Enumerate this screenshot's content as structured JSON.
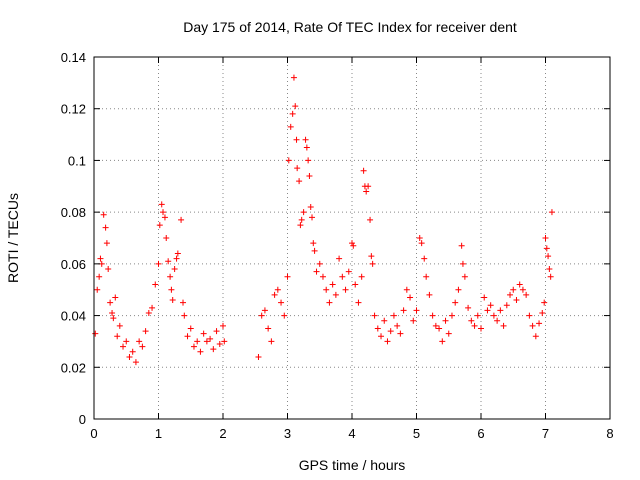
{
  "chart_data": {
    "type": "scatter",
    "title": "Day 175 of 2014, Rate Of TEC Index for receiver dent",
    "xlabel": "GPS time / hours",
    "ylabel": "ROTI / TECUs",
    "xlim": [
      0,
      8
    ],
    "ylim": [
      0,
      0.14
    ],
    "xticks": [
      "0",
      "1",
      "2",
      "3",
      "4",
      "5",
      "6",
      "7",
      "8"
    ],
    "yticks": [
      "0",
      "0.02",
      "0.04",
      "0.06",
      "0.08",
      "0.1",
      "0.12",
      "0.14"
    ],
    "grid": true,
    "marker": "+",
    "color": "#ff0000",
    "series": [
      {
        "name": "ROTI",
        "points": [
          [
            0.02,
            0.033
          ],
          [
            0.05,
            0.05
          ],
          [
            0.08,
            0.055
          ],
          [
            0.1,
            0.062
          ],
          [
            0.12,
            0.06
          ],
          [
            0.15,
            0.079
          ],
          [
            0.18,
            0.074
          ],
          [
            0.2,
            0.068
          ],
          [
            0.22,
            0.058
          ],
          [
            0.25,
            0.045
          ],
          [
            0.28,
            0.041
          ],
          [
            0.3,
            0.039
          ],
          [
            0.33,
            0.047
          ],
          [
            0.36,
            0.032
          ],
          [
            0.4,
            0.036
          ],
          [
            0.45,
            0.028
          ],
          [
            0.5,
            0.03
          ],
          [
            0.55,
            0.024
          ],
          [
            0.6,
            0.026
          ],
          [
            0.65,
            0.022
          ],
          [
            0.7,
            0.03
          ],
          [
            0.75,
            0.028
          ],
          [
            0.8,
            0.034
          ],
          [
            0.85,
            0.041
          ],
          [
            0.9,
            0.043
          ],
          [
            0.95,
            0.052
          ],
          [
            1.0,
            0.06
          ],
          [
            1.02,
            0.075
          ],
          [
            1.05,
            0.083
          ],
          [
            1.07,
            0.08
          ],
          [
            1.1,
            0.078
          ],
          [
            1.12,
            0.07
          ],
          [
            1.15,
            0.061
          ],
          [
            1.18,
            0.055
          ],
          [
            1.2,
            0.05
          ],
          [
            1.22,
            0.046
          ],
          [
            1.25,
            0.058
          ],
          [
            1.28,
            0.062
          ],
          [
            1.3,
            0.064
          ],
          [
            1.35,
            0.077
          ],
          [
            1.38,
            0.045
          ],
          [
            1.4,
            0.04
          ],
          [
            1.45,
            0.032
          ],
          [
            1.5,
            0.035
          ],
          [
            1.55,
            0.028
          ],
          [
            1.6,
            0.03
          ],
          [
            1.65,
            0.026
          ],
          [
            1.7,
            0.033
          ],
          [
            1.75,
            0.03
          ],
          [
            1.8,
            0.031
          ],
          [
            1.85,
            0.027
          ],
          [
            1.9,
            0.034
          ],
          [
            1.95,
            0.029
          ],
          [
            2.0,
            0.036
          ],
          [
            2.02,
            0.03
          ],
          [
            2.55,
            0.024
          ],
          [
            2.6,
            0.04
          ],
          [
            2.65,
            0.042
          ],
          [
            2.7,
            0.035
          ],
          [
            2.75,
            0.03
          ],
          [
            2.8,
            0.048
          ],
          [
            2.85,
            0.05
          ],
          [
            2.9,
            0.045
          ],
          [
            2.95,
            0.04
          ],
          [
            3.0,
            0.055
          ],
          [
            3.02,
            0.1
          ],
          [
            3.05,
            0.113
          ],
          [
            3.08,
            0.118
          ],
          [
            3.1,
            0.132
          ],
          [
            3.12,
            0.121
          ],
          [
            3.14,
            0.108
          ],
          [
            3.15,
            0.097
          ],
          [
            3.18,
            0.092
          ],
          [
            3.2,
            0.075
          ],
          [
            3.22,
            0.077
          ],
          [
            3.25,
            0.08
          ],
          [
            3.28,
            0.108
          ],
          [
            3.3,
            0.105
          ],
          [
            3.32,
            0.1
          ],
          [
            3.34,
            0.094
          ],
          [
            3.36,
            0.082
          ],
          [
            3.38,
            0.078
          ],
          [
            3.4,
            0.068
          ],
          [
            3.42,
            0.065
          ],
          [
            3.45,
            0.057
          ],
          [
            3.5,
            0.06
          ],
          [
            3.55,
            0.055
          ],
          [
            3.6,
            0.05
          ],
          [
            3.65,
            0.045
          ],
          [
            3.7,
            0.052
          ],
          [
            3.75,
            0.048
          ],
          [
            3.8,
            0.062
          ],
          [
            3.85,
            0.055
          ],
          [
            3.9,
            0.05
          ],
          [
            3.95,
            0.057
          ],
          [
            4.0,
            0.068
          ],
          [
            4.02,
            0.067
          ],
          [
            4.05,
            0.052
          ],
          [
            4.1,
            0.045
          ],
          [
            4.15,
            0.055
          ],
          [
            4.18,
            0.096
          ],
          [
            4.2,
            0.09
          ],
          [
            4.22,
            0.088
          ],
          [
            4.25,
            0.09
          ],
          [
            4.28,
            0.077
          ],
          [
            4.3,
            0.063
          ],
          [
            4.32,
            0.06
          ],
          [
            4.35,
            0.04
          ],
          [
            4.4,
            0.035
          ],
          [
            4.45,
            0.032
          ],
          [
            4.5,
            0.038
          ],
          [
            4.55,
            0.03
          ],
          [
            4.6,
            0.034
          ],
          [
            4.65,
            0.04
          ],
          [
            4.7,
            0.036
          ],
          [
            4.75,
            0.033
          ],
          [
            4.8,
            0.042
          ],
          [
            4.85,
            0.05
          ],
          [
            4.9,
            0.047
          ],
          [
            4.95,
            0.038
          ],
          [
            5.0,
            0.042
          ],
          [
            5.05,
            0.07
          ],
          [
            5.08,
            0.068
          ],
          [
            5.12,
            0.062
          ],
          [
            5.15,
            0.055
          ],
          [
            5.2,
            0.048
          ],
          [
            5.25,
            0.04
          ],
          [
            5.3,
            0.036
          ],
          [
            5.35,
            0.035
          ],
          [
            5.4,
            0.03
          ],
          [
            5.45,
            0.038
          ],
          [
            5.5,
            0.033
          ],
          [
            5.55,
            0.04
          ],
          [
            5.6,
            0.045
          ],
          [
            5.65,
            0.05
          ],
          [
            5.7,
            0.067
          ],
          [
            5.72,
            0.06
          ],
          [
            5.75,
            0.055
          ],
          [
            5.8,
            0.043
          ],
          [
            5.85,
            0.038
          ],
          [
            5.9,
            0.036
          ],
          [
            5.95,
            0.04
          ],
          [
            6.0,
            0.035
          ],
          [
            6.05,
            0.047
          ],
          [
            6.1,
            0.042
          ],
          [
            6.15,
            0.044
          ],
          [
            6.2,
            0.04
          ],
          [
            6.25,
            0.038
          ],
          [
            6.3,
            0.042
          ],
          [
            6.35,
            0.036
          ],
          [
            6.4,
            0.044
          ],
          [
            6.45,
            0.048
          ],
          [
            6.5,
            0.05
          ],
          [
            6.55,
            0.046
          ],
          [
            6.6,
            0.052
          ],
          [
            6.65,
            0.05
          ],
          [
            6.7,
            0.048
          ],
          [
            6.75,
            0.04
          ],
          [
            6.8,
            0.036
          ],
          [
            6.85,
            0.032
          ],
          [
            6.9,
            0.037
          ],
          [
            6.95,
            0.041
          ],
          [
            6.98,
            0.045
          ],
          [
            7.0,
            0.07
          ],
          [
            7.02,
            0.066
          ],
          [
            7.04,
            0.063
          ],
          [
            7.06,
            0.058
          ],
          [
            7.08,
            0.055
          ],
          [
            7.1,
            0.08
          ]
        ]
      }
    ]
  }
}
